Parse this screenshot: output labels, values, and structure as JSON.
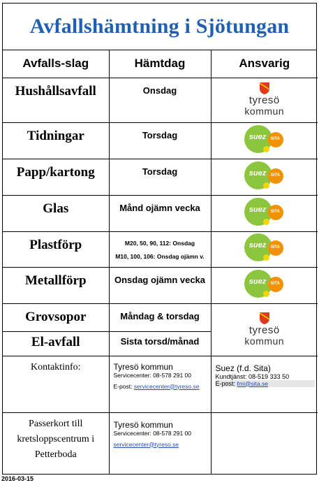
{
  "title": "Avfallshämtning i Sjötungan",
  "headers": [
    "Avfalls-slag",
    "Hämtdag",
    "Ansvarig"
  ],
  "rows": [
    {
      "type": "Hushållsavfall",
      "day": "Onsdag",
      "resp": "tyreso"
    },
    {
      "type": "Tidningar",
      "day": "Torsdag",
      "resp": "suez"
    },
    {
      "type": "Papp/kartong",
      "day": "Torsdag",
      "resp": "suez"
    },
    {
      "type": "Glas",
      "day": "Månd ojämn vecka",
      "resp": "suez"
    },
    {
      "type": "Plastförp",
      "day_lines": [
        "M20, 50, 90, 112: Onsdag",
        "M10, 100, 106: Onsdag ojämn v."
      ],
      "resp": "suez"
    },
    {
      "type": "Metallförp",
      "day": "Onsdag ojämn vecka",
      "resp": "suez"
    },
    {
      "type": "Grovsopor",
      "day": "Måndag & torsdag",
      "resp": "tyreso"
    },
    {
      "type": "El-avfall",
      "day": "Sista torsd/månad",
      "resp": "tyreso"
    }
  ],
  "logos": {
    "tyreso": {
      "line1": "tyresö",
      "line2": "kommun",
      "icon": "tyreso-emblem-icon"
    },
    "suez": {
      "text1": "suez",
      "text2": "SITA",
      "icon": "suez-sita-logo-icon"
    }
  },
  "contact": {
    "label": "Kontaktinfo:",
    "tyreso": {
      "name": "Tyresö kommun",
      "service": "Servicecenter: 08-578 291 00",
      "email_label": "E-post: ",
      "email": "servicecenter@tyreso.se"
    },
    "suez": {
      "name": "Suez (f.d. Sita)",
      "service": "Kundtjänst: 08-519 333 50",
      "email_label": "E-post: ",
      "email": "fmi@sita.se"
    }
  },
  "passerkort": {
    "label_lines": [
      "Passerkort till",
      "kretsloppscentrum i",
      "Petterboda"
    ],
    "name": "Tyresö kommun",
    "service": "Servicecenter: 08-578 291 00",
    "email": "servicecenter@tyreso.se"
  },
  "date": "2016-03-15",
  "colors": {
    "title": "#1f5fb4",
    "suez_green": "#8cc63f",
    "sita_orange": "#f39200",
    "link": "#1f4fb0"
  }
}
